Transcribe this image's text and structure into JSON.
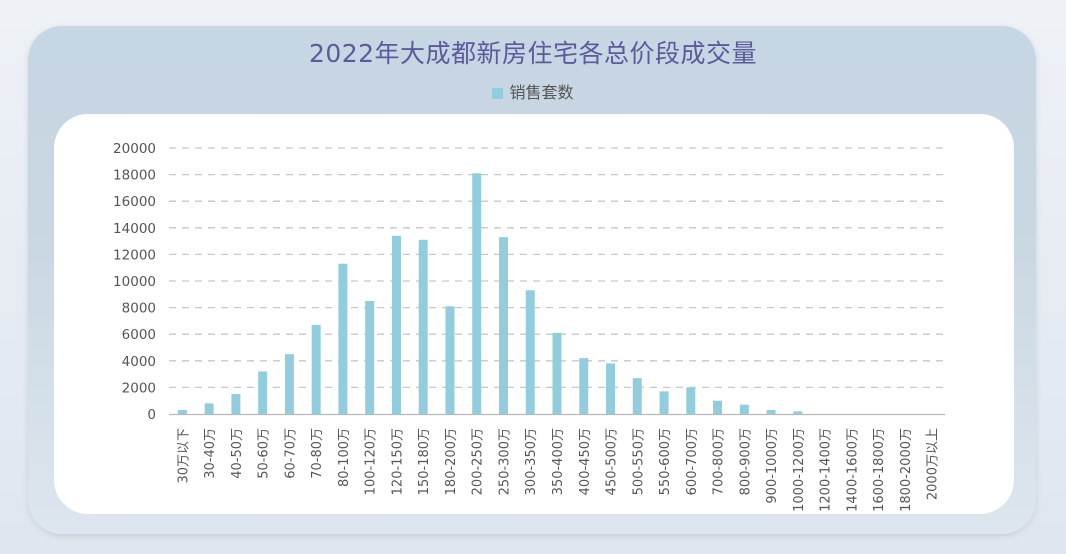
{
  "title": "2022年大成都新房住宅各总价段成交量",
  "legend_label": "销售套数",
  "colors": {
    "bar": "#92cddd",
    "title": "#5c5a9c",
    "grid": "#c8c8c8"
  },
  "chart_data": {
    "type": "bar",
    "title": "2022年大成都新房住宅各总价段成交量",
    "xlabel": "",
    "ylabel": "",
    "ylim": [
      0,
      20000
    ],
    "yticks": [
      0,
      2000,
      4000,
      6000,
      8000,
      10000,
      12000,
      14000,
      16000,
      18000,
      20000
    ],
    "grid": true,
    "legend_position": "top-center",
    "categories": [
      "30万以下",
      "30-40万",
      "40-50万",
      "50-60万",
      "60-70万",
      "70-80万",
      "80-100万",
      "100-120万",
      "120-150万",
      "150-180万",
      "180-200万",
      "200-250万",
      "250-300万",
      "300-350万",
      "350-400万",
      "400-450万",
      "450-500万",
      "500-550万",
      "550-600万",
      "600-700万",
      "700-800万",
      "800-900万",
      "900-1000万",
      "1000-1200万",
      "1200-1400万",
      "1400-1600万",
      "1600-1800万",
      "1800-2000万",
      "2000万以上"
    ],
    "series": [
      {
        "name": "销售套数",
        "values": [
          300,
          800,
          1500,
          3200,
          4500,
          6700,
          11300,
          8500,
          13400,
          13100,
          8100,
          18100,
          13300,
          9300,
          6100,
          4200,
          3800,
          2700,
          1700,
          2000,
          1000,
          700,
          300,
          200,
          0,
          0,
          0,
          0,
          0
        ]
      }
    ]
  }
}
